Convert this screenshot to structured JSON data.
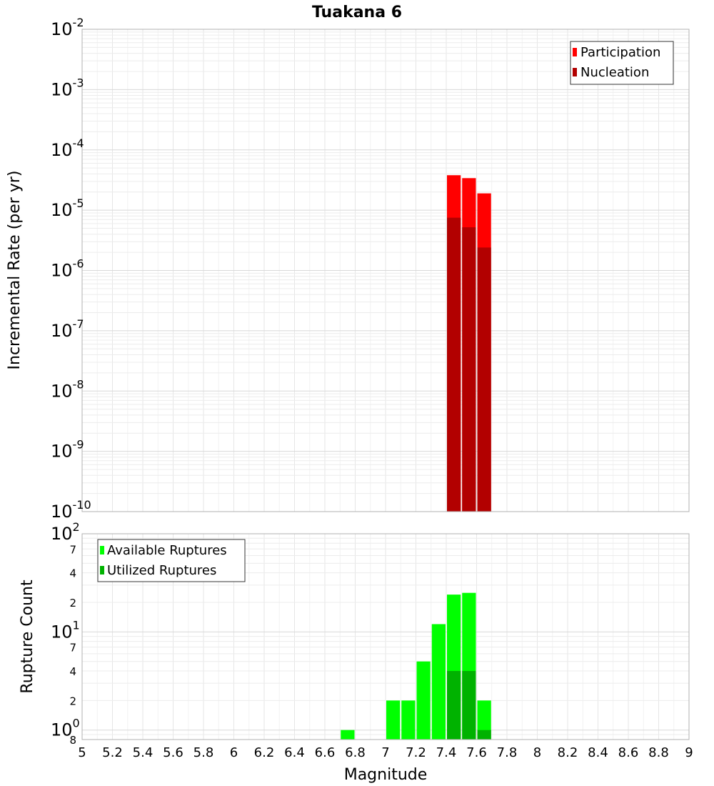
{
  "chart_data": {
    "type": "bar",
    "title": "Tuakana 6",
    "x_label": "Magnitude",
    "x_range": [
      5,
      9
    ],
    "x_ticks": [
      "5",
      "5.2",
      "5.4",
      "5.6",
      "5.8",
      "6",
      "6.2",
      "6.4",
      "6.6",
      "6.8",
      "7",
      "7.2",
      "7.4",
      "7.6",
      "7.8",
      "8",
      "8.2",
      "8.4",
      "8.6",
      "8.8",
      "9"
    ],
    "bin_width": 0.1,
    "panels": [
      {
        "id": "rate",
        "y_label": "Incremental Rate (per yr)",
        "y_scale": "log",
        "y_range": [
          1e-10,
          0.01
        ],
        "y_tick_labels": [
          {
            "base": "10",
            "exp": "-2",
            "value": 0.01
          },
          {
            "base": "10",
            "exp": "-3",
            "value": 0.001
          },
          {
            "base": "10",
            "exp": "-4",
            "value": 0.0001
          },
          {
            "base": "10",
            "exp": "-5",
            "value": 1e-05
          },
          {
            "base": "10",
            "exp": "-6",
            "value": 1e-06
          },
          {
            "base": "10",
            "exp": "-7",
            "value": 1e-07
          },
          {
            "base": "10",
            "exp": "-8",
            "value": 1e-08
          },
          {
            "base": "10",
            "exp": "-9",
            "value": 1e-09
          },
          {
            "base": "10",
            "exp": "-10",
            "value": 1e-10
          }
        ],
        "legend": {
          "position": "top-right"
        },
        "series": [
          {
            "name": "Participation",
            "color": "#ff0000",
            "x": [
              7.45,
              7.55,
              7.65
            ],
            "values": [
              3.8e-05,
              3.4e-05,
              1.9e-05
            ]
          },
          {
            "name": "Nucleation",
            "color": "#b20000",
            "x": [
              7.45,
              7.55,
              7.65
            ],
            "values": [
              7.5e-06,
              5.2e-06,
              2.4e-06
            ]
          }
        ]
      },
      {
        "id": "count",
        "y_label": "Rupture Count",
        "y_scale": "log",
        "y_range": [
          0.8,
          100
        ],
        "y_tick_labels": [
          {
            "base": "10",
            "exp": "2",
            "value": 100
          },
          {
            "base": "7",
            "exp": "",
            "value": 70
          },
          {
            "base": "4",
            "exp": "",
            "value": 40
          },
          {
            "base": "2",
            "exp": "",
            "value": 20
          },
          {
            "base": "10",
            "exp": "1",
            "value": 10
          },
          {
            "base": "7",
            "exp": "",
            "value": 7
          },
          {
            "base": "4",
            "exp": "",
            "value": 4
          },
          {
            "base": "2",
            "exp": "",
            "value": 2
          },
          {
            "base": "10",
            "exp": "0",
            "value": 1
          },
          {
            "base": "8",
            "exp": "",
            "value": 0.8
          }
        ],
        "legend": {
          "position": "top-left"
        },
        "series": [
          {
            "name": "Available Ruptures",
            "color": "#00ff00",
            "x": [
              6.75,
              7.05,
              7.15,
              7.25,
              7.35,
              7.45,
              7.55,
              7.65
            ],
            "values": [
              1,
              2,
              2,
              5,
              12,
              24,
              25,
              2
            ]
          },
          {
            "name": "Utilized Ruptures",
            "color": "#00b200",
            "x": [
              7.45,
              7.55,
              7.65
            ],
            "values": [
              4,
              4,
              1
            ]
          }
        ]
      }
    ]
  }
}
